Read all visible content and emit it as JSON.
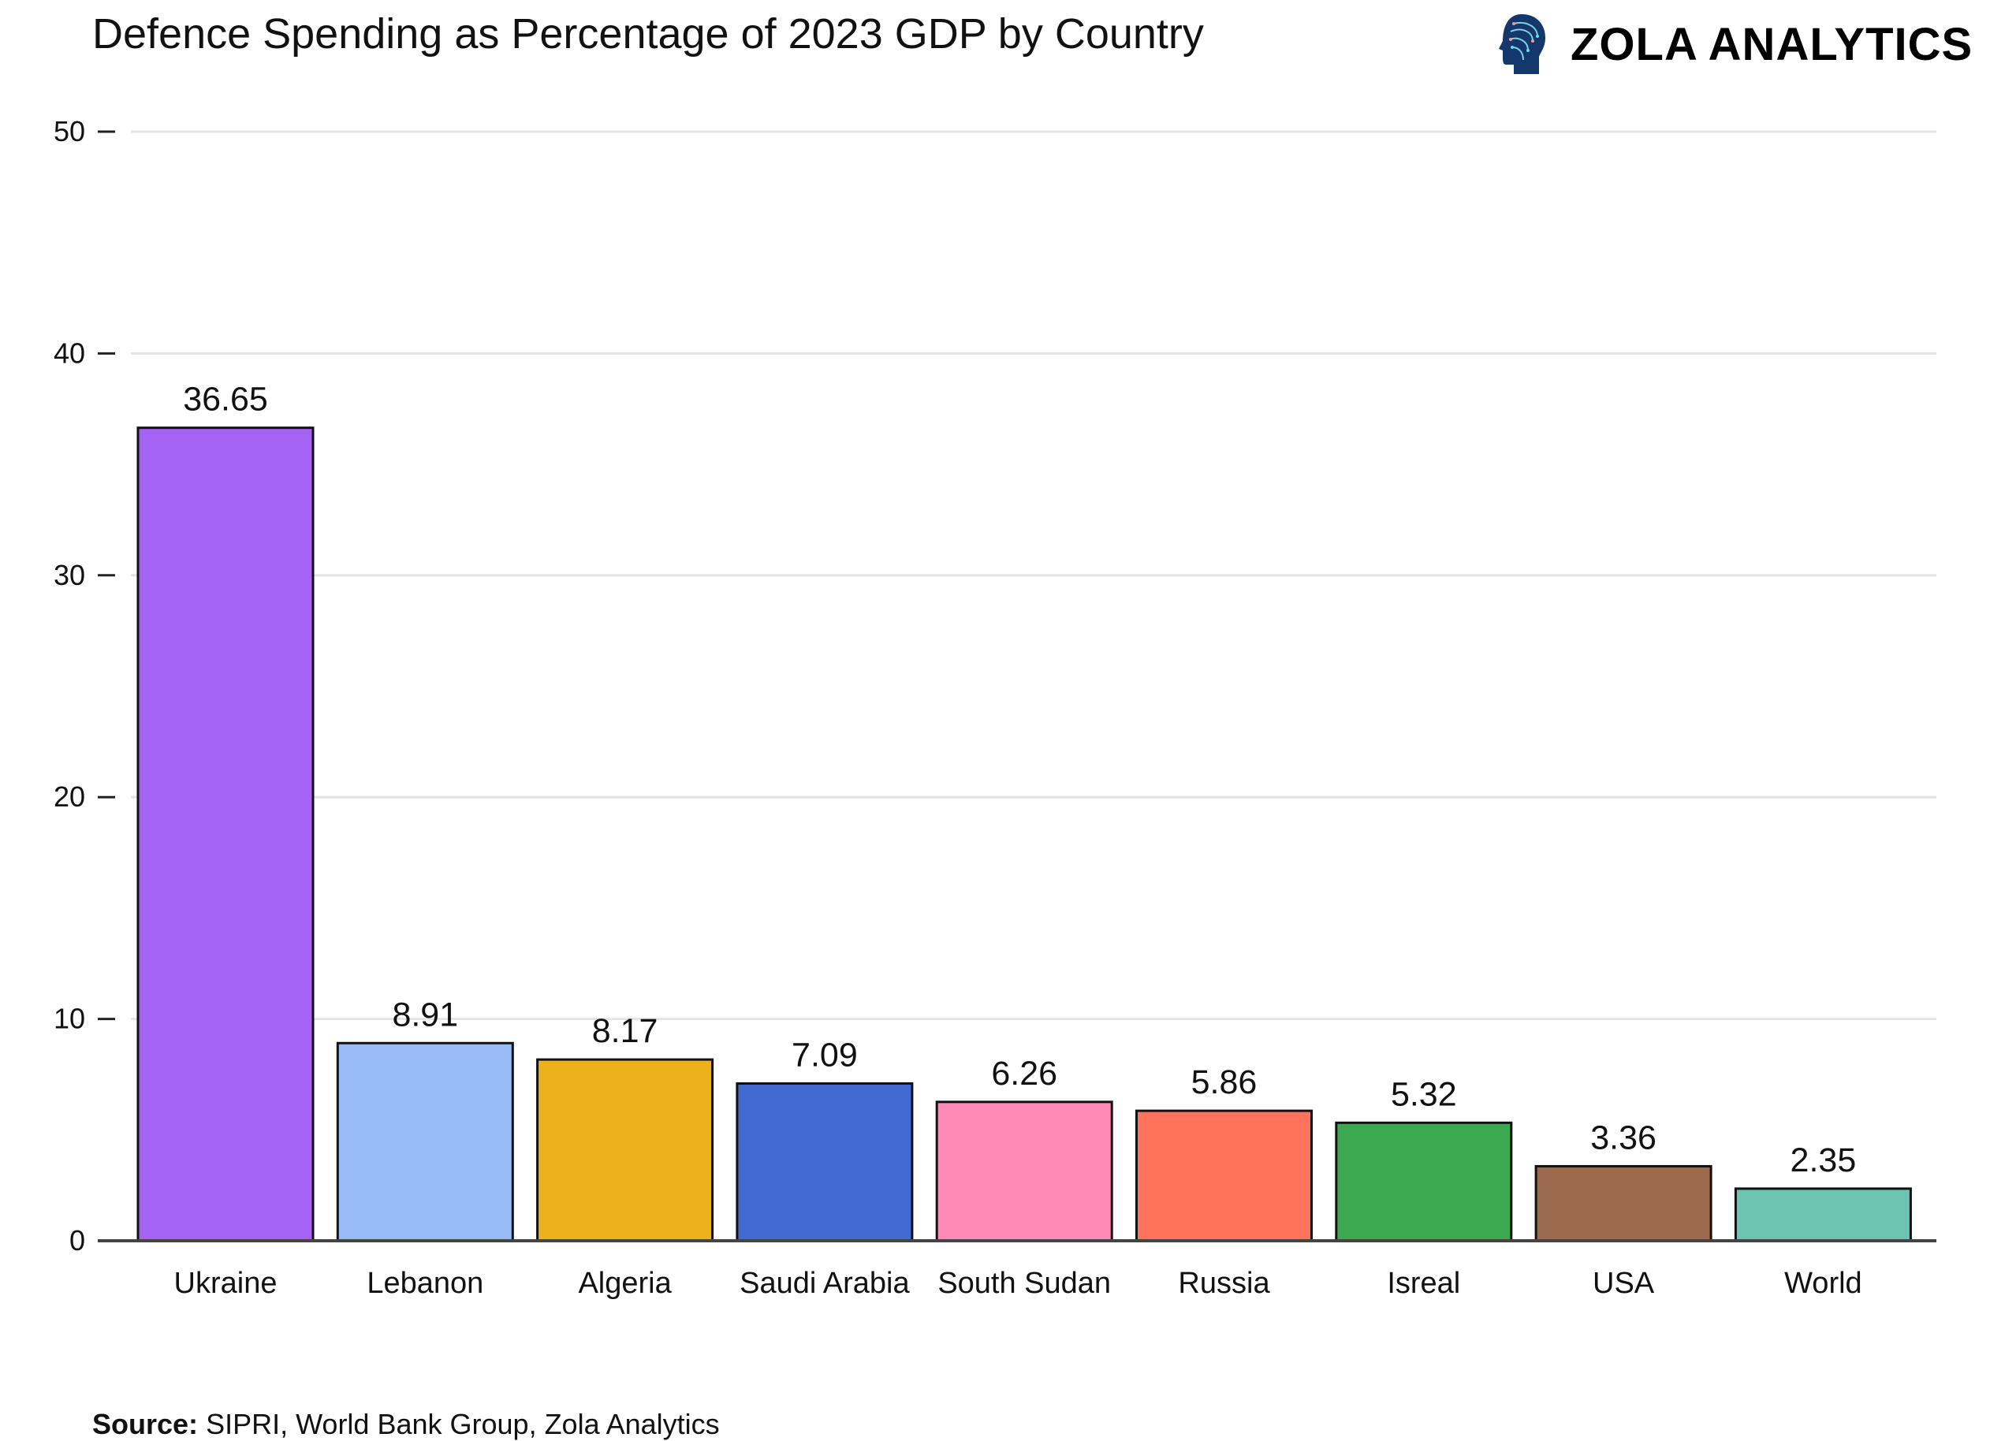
{
  "header": {
    "title": "Defence Spending as Percentage of 2023 GDP by Country",
    "logo_text": "ZOLA ANALYTICS",
    "logo_icon": "head-circuit-icon"
  },
  "footer": {
    "source_label": "Source:",
    "source_text": "SIPRI, World Bank Group, Zola Analytics"
  },
  "chart_data": {
    "type": "bar",
    "title": "Defence Spending as Percentage of 2023 GDP by Country",
    "xlabel": "",
    "ylabel": "",
    "ylim": [
      0,
      50
    ],
    "yticks": [
      0,
      10,
      20,
      30,
      40,
      50
    ],
    "grid": true,
    "categories": [
      "Ukraine",
      "Lebanon",
      "Algeria",
      "Saudi Arabia",
      "South Sudan",
      "Russia",
      "Isreal",
      "USA",
      "World"
    ],
    "values": [
      36.65,
      8.91,
      8.17,
      7.09,
      6.26,
      5.86,
      5.32,
      3.36,
      2.35
    ],
    "data_labels": [
      "36.65",
      "8.91",
      "8.17",
      "7.09",
      "6.26",
      "5.86",
      "5.32",
      "3.36",
      "2.35"
    ],
    "colors": [
      "#A463F2",
      "#97BBF5",
      "#EDB11A",
      "#426AD1",
      "#FF8AB5",
      "#FF725C",
      "#3CA951",
      "#9C6B4E",
      "#6CC5B0"
    ]
  }
}
